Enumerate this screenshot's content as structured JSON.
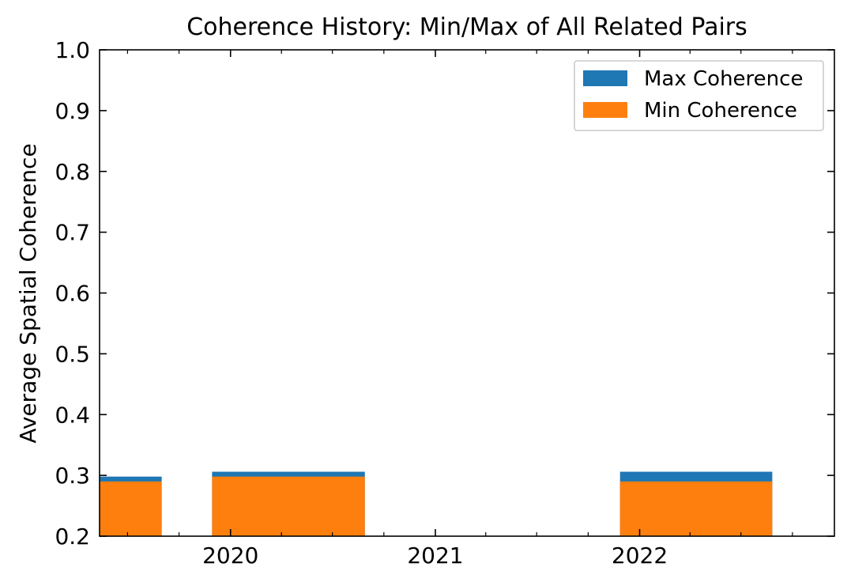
{
  "chart_data": {
    "type": "bar",
    "title": "Coherence History: Min/Max of All Related Pairs",
    "xlabel": "",
    "ylabel": "Average Spatial Coherence",
    "x_axis": {
      "type": "date",
      "range": [
        "2019-05-12",
        "2022-12-15"
      ],
      "tick_labels": [
        "2020",
        "2021",
        "2022"
      ],
      "tick_values": [
        "2020-01-01",
        "2021-01-01",
        "2022-01-01"
      ]
    },
    "ylim": [
      0.2,
      1.0
    ],
    "yticks": [
      "0.2",
      "0.3",
      "0.4",
      "0.5",
      "0.6",
      "0.7",
      "0.8",
      "0.9",
      "1.0"
    ],
    "grid": false,
    "legend_position": "top-right",
    "bars": [
      {
        "start": "2019-05-12",
        "end": "2019-08-31",
        "min": 0.29,
        "max": 0.298
      },
      {
        "start": "2019-11-29",
        "end": "2020-08-28",
        "min": 0.298,
        "max": 0.306
      },
      {
        "start": "2021-11-27",
        "end": "2022-08-26",
        "min": 0.29,
        "max": 0.306
      }
    ],
    "series": [
      {
        "name": "Max Coherence",
        "color": "#1f77b4",
        "key": "max"
      },
      {
        "name": "Min Coherence",
        "color": "#ff7f0e",
        "key": "min"
      }
    ]
  }
}
